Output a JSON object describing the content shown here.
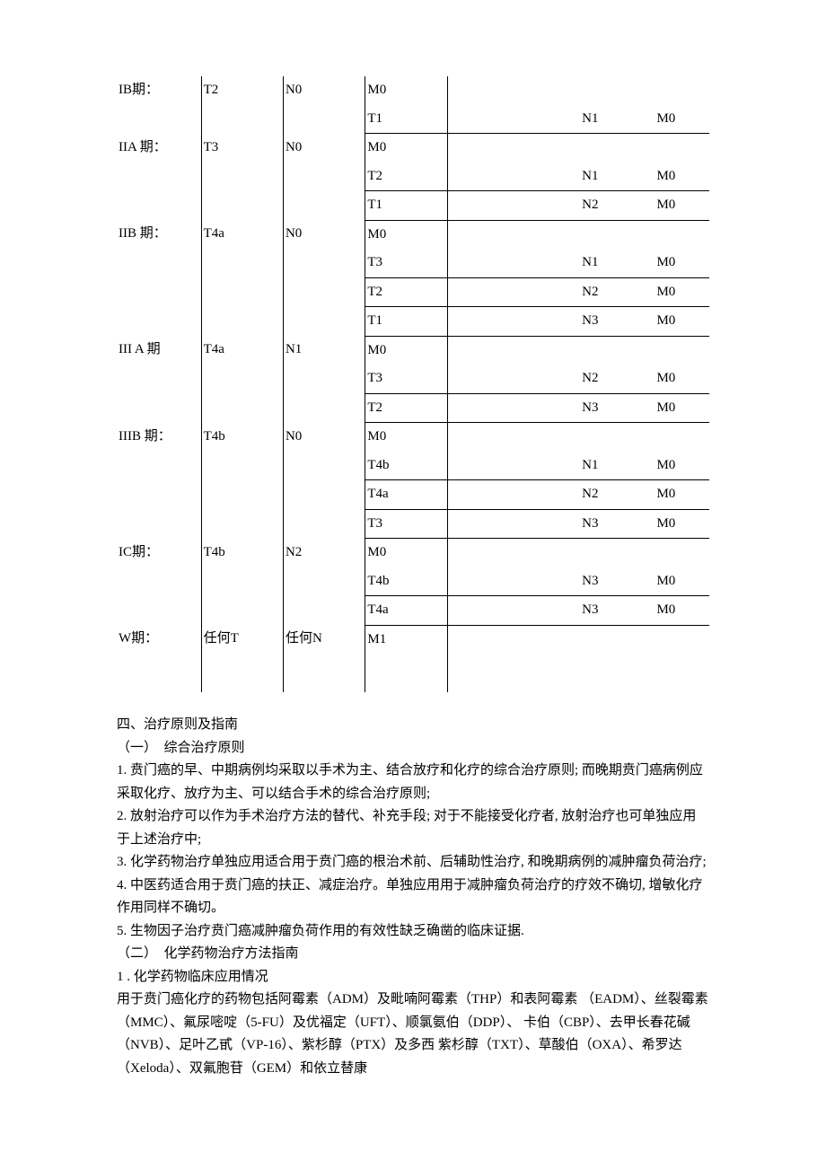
{
  "table": {
    "rows": [
      {
        "c1": "IB期：",
        "c2": "T2",
        "c3": "N0",
        "c4": "M0",
        "c5": "",
        "c6": "",
        "c7": "",
        "sub": false
      },
      {
        "c1": "",
        "c2": "",
        "c3": "",
        "c4": "T1",
        "c5": "",
        "c6": "N1",
        "c7": "M0",
        "sub": true
      },
      {
        "c1": "IIA 期：",
        "c2": "T3",
        "c3": "N0",
        "c4": "M0",
        "c5": "",
        "c6": "",
        "c7": "",
        "sub": false
      },
      {
        "c1": "",
        "c2": "",
        "c3": "",
        "c4": "T2",
        "c5": "",
        "c6": "N1",
        "c7": "M0",
        "sub": true
      },
      {
        "c1": "",
        "c2": "",
        "c3": "",
        "c4": "T1",
        "c5": "",
        "c6": "N2",
        "c7": "M0",
        "sub": true
      },
      {
        "c1": "IIB 期：",
        "c2": "T4a",
        "c3": "N0",
        "c4": "M0",
        "c5": "",
        "c6": "",
        "c7": "",
        "sub": false
      },
      {
        "c1": "",
        "c2": "",
        "c3": "",
        "c4": "T3",
        "c5": "",
        "c6": "N1",
        "c7": "M0",
        "sub": true
      },
      {
        "c1": "",
        "c2": "",
        "c3": "",
        "c4": "T2",
        "c5": "",
        "c6": "N2",
        "c7": "M0",
        "sub": true
      },
      {
        "c1": "",
        "c2": "",
        "c3": "",
        "c4": "T1",
        "c5": "",
        "c6": "N3",
        "c7": "M0",
        "sub": true
      },
      {
        "c1": "III A 期",
        "c2": "T4a",
        "c3": "N1",
        "c4": "M0",
        "c5": "",
        "c6": "",
        "c7": "",
        "sub": false
      },
      {
        "c1": "",
        "c2": "",
        "c3": "",
        "c4": "T3",
        "c5": "",
        "c6": "N2",
        "c7": "M0",
        "sub": true
      },
      {
        "c1": "",
        "c2": "",
        "c3": "",
        "c4": "T2",
        "c5": "",
        "c6": "N3",
        "c7": "M0",
        "sub": true
      },
      {
        "c1": "IIIB 期：",
        "c2": "T4b",
        "c3": "N0",
        "c4": "M0",
        "c5": "",
        "c6": "",
        "c7": "",
        "sub": false
      },
      {
        "c1": "",
        "c2": "",
        "c3": "",
        "c4": "T4b",
        "c5": "",
        "c6": "N1",
        "c7": "M0",
        "sub": true
      },
      {
        "c1": "",
        "c2": "",
        "c3": "",
        "c4": "T4a",
        "c5": "",
        "c6": "N2",
        "c7": "M0",
        "sub": true
      },
      {
        "c1": "",
        "c2": "",
        "c3": "",
        "c4": "T3",
        "c5": "",
        "c6": "N3",
        "c7": "M0",
        "sub": true
      },
      {
        "c1": "IC期：",
        "c2": "T4b",
        "c3": "N2",
        "c4": "M0",
        "c5": "",
        "c6": "",
        "c7": "",
        "sub": false
      },
      {
        "c1": "",
        "c2": "",
        "c3": "",
        "c4": "T4b",
        "c5": "",
        "c6": "N3",
        "c7": "M0",
        "sub": true
      },
      {
        "c1": "",
        "c2": "",
        "c3": "",
        "c4": "T4a",
        "c5": "",
        "c6": "N3",
        "c7": "M0",
        "sub": true
      },
      {
        "c1": "W期：",
        "c2": "任何T",
        "c3": "任何N",
        "c4": "M1",
        "c5": "",
        "c6": "",
        "c7": "",
        "sub": false,
        "last": true
      }
    ]
  },
  "body": {
    "lines": [
      "四、治疗原则及指南",
      "（一）　综合治疗原则",
      "1. 贲门癌的早、中期病例均采取以手术为主、结合放疗和化疗的综合治疗原则; 而晚期贲门癌病例应采取化疗、放疗为主、可以结合手术的综合治疗原则;",
      "2. 放射治疗可以作为手术治疗方法的替代、补充手段; 对于不能接受化疗者, 放射治疗也可单独应用于上述治疗中;",
      "3. 化学药物治疗单独应用适合用于贲门癌的根治术前、后辅助性治疗, 和晚期病例的减肿瘤负荷治疗;",
      "4. 中医药适合用于贲门癌的扶正、减症治疗。单独应用用于减肿瘤负荷治疗的疗效不确切, 增敏化疗作用同样不确切。",
      "5. 生物因子治疗贲门癌减肿瘤负荷作用的有效性缺乏确凿的临床证据.",
      "（二）　化学药物治疗方法指南",
      "1 . 化学药物临床应用情况",
      "  用于贲门癌化疗的药物包括阿霉素（ADM）及毗喃阿霉素（THP）和表阿霉素 （EADM）、丝裂霉素（MMC）、氟尿嘧啶（5-FU）及优福定（UFT）、顺氯氨伯（DDP）、 卡伯（CBP）、去甲长春花碱（NVB）、足叶乙甙（VP-16）、紫杉醇（PTX）及多西 紫杉醇（TXT）、草酸伯（OXA）、希罗达（Xeloda）、双氟胞苷（GEM）和依立替康"
    ]
  }
}
